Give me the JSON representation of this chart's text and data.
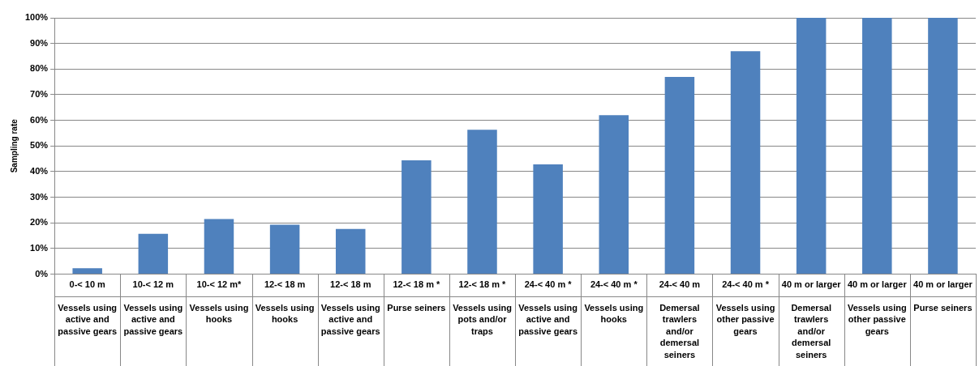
{
  "chart_data": {
    "type": "bar",
    "ylabel": "Sampling rate",
    "categories": [
      "0-< 10 m\nVessels using\nactive and\npassive gears",
      "10-< 12 m\nVessels using\nactive and\npassive gears",
      "10-< 12 m*\nVessels using\nhooks",
      "12-< 18 m\nVessels using\nhooks",
      "12-< 18 m\nVessels using\nactive and\npassive gears",
      "12-< 18 m *\nPurse seiners",
      "12-< 18 m *\nVessels using\npots and/or\ntraps",
      "24-< 40 m *\nVessels using\nactive and\npassive gears",
      "24-< 40 m *\nVessels using\nhooks",
      "24-< 40 m\nDemersal\ntrawlers\nand/or\ndemersal\nseiners",
      "24-< 40 m *\nVessels using\nother passive\ngears",
      "40 m or larger\nDemersal\ntrawlers\nand/or\ndemersal\nseiners",
      "40 m or larger\nVessels using\nother passive\ngears",
      "40 m or larger\nPurse seiners"
    ],
    "values": [
      2.3,
      15.7,
      21.5,
      19.3,
      17.6,
      44.4,
      56.3,
      42.8,
      62,
      76.9,
      87,
      100,
      100,
      100
    ],
    "color": "#4f81bd",
    "ylim": [
      0,
      100
    ],
    "yticks": [
      {
        "value": 0,
        "label": "0%"
      },
      {
        "value": 10,
        "label": "10%"
      },
      {
        "value": 20,
        "label": "20%"
      },
      {
        "value": 30,
        "label": "30%"
      },
      {
        "value": 40,
        "label": "40%"
      },
      {
        "value": 50,
        "label": "50%"
      },
      {
        "value": 60,
        "label": "60%"
      },
      {
        "value": 70,
        "label": "70%"
      },
      {
        "value": 80,
        "label": "80%"
      },
      {
        "value": 90,
        "label": "90%"
      },
      {
        "value": 100,
        "label": "100%"
      }
    ],
    "grid": "y",
    "legend": false
  }
}
